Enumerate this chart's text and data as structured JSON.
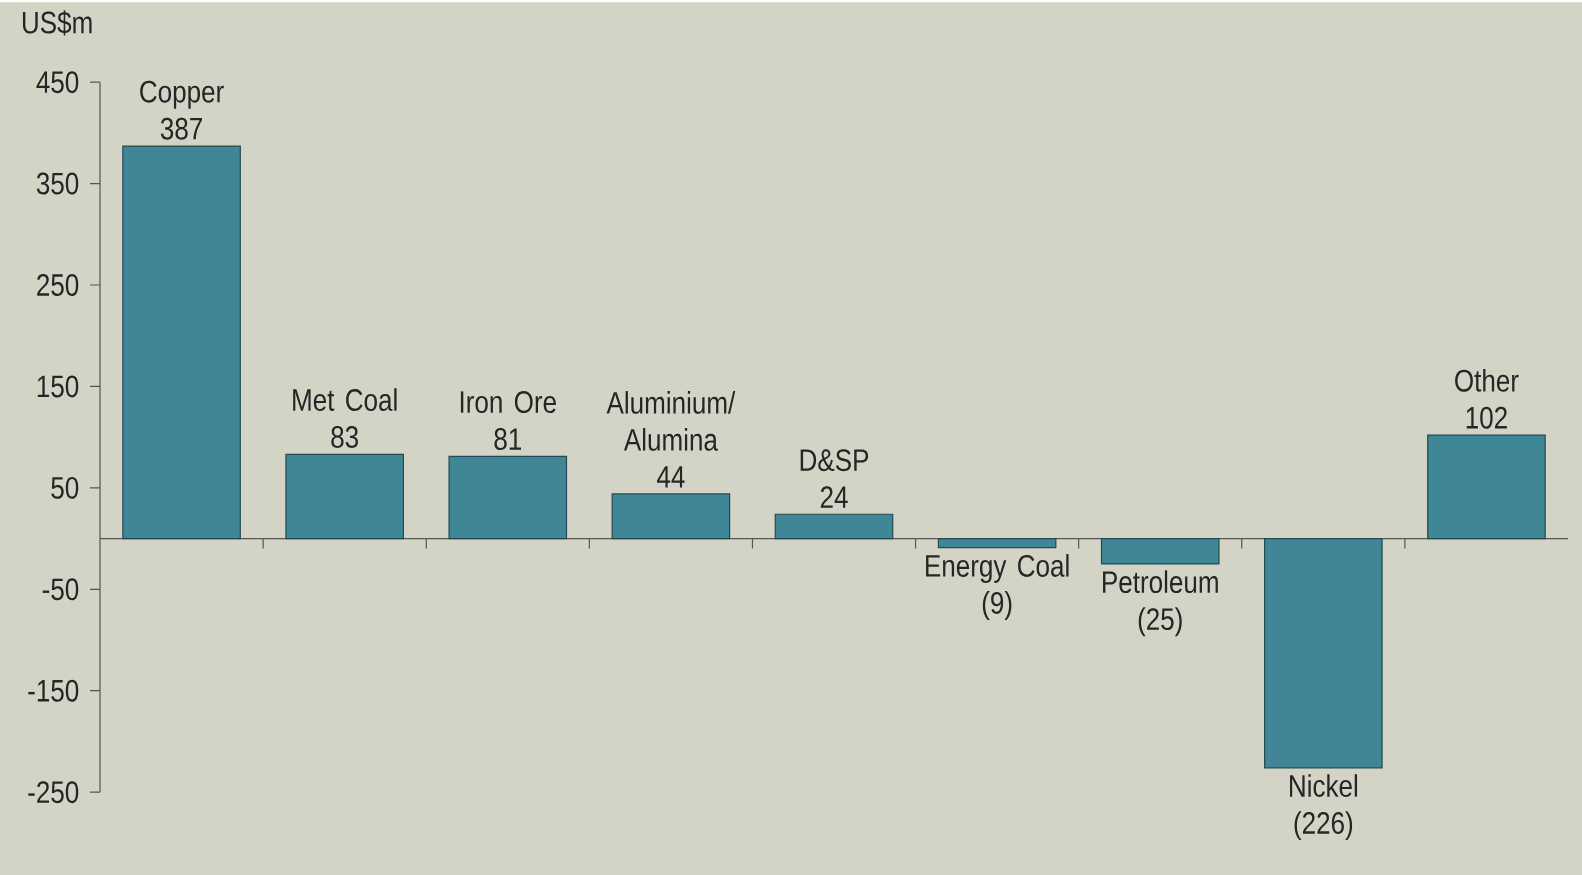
{
  "chart_data": {
    "type": "bar",
    "ylabel": "US$m",
    "categories": [
      "Copper",
      "Met Coal",
      "Iron Ore",
      "Aluminium/Alumina",
      "D&SP",
      "Energy Coal",
      "Petroleum",
      "Nickel",
      "Other"
    ],
    "values": [
      387,
      83,
      81,
      44,
      24,
      -9,
      -25,
      -226,
      102
    ],
    "value_labels": [
      "387",
      "83",
      "81",
      "44",
      "24",
      "(9)",
      "(25)",
      "(226)",
      "102"
    ],
    "color": "#3f8696",
    "ylim": [
      -250,
      450
    ],
    "yticks": [
      450,
      350,
      250,
      150,
      50,
      -50,
      -150,
      -250
    ]
  }
}
